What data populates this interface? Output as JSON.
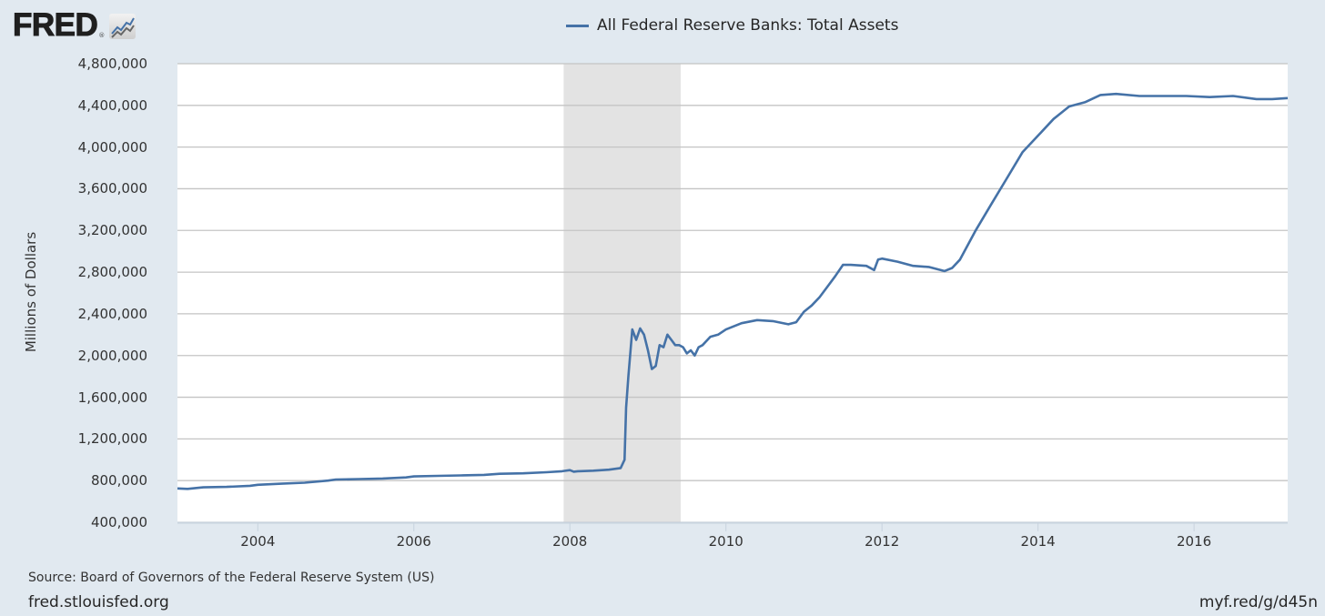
{
  "header": {
    "logo_text": "FRED",
    "logo_mark": "®",
    "logo_icon": "chart-line-icon",
    "legend_label": "All Federal Reserve Banks: Total Assets",
    "legend_color": "#4572a7"
  },
  "footer": {
    "source": "Source: Board of Governors of the Federal Reserve System (US)",
    "site": "fred.stlouisfed.org",
    "short_link": "myf.red/g/d45n"
  },
  "colors": {
    "background": "#e1e9f0",
    "plot_background": "#ffffff",
    "gridline": "#c4c4c4",
    "recession_shade": "#e3e3e3",
    "line": "#4572a7"
  },
  "chart_data": {
    "type": "line",
    "title": "All Federal Reserve Banks: Total Assets",
    "xlabel": "",
    "ylabel": "Millions of Dollars",
    "ylim": [
      400000,
      4800000
    ],
    "xlim": [
      2002.97,
      2017.2
    ],
    "grid": true,
    "legend_position": "top-center",
    "yticks": [
      "4,800,000",
      "4,400,000",
      "4,000,000",
      "3,600,000",
      "3,200,000",
      "2,800,000",
      "2,400,000",
      "2,000,000",
      "1,600,000",
      "1,200,000",
      "800,000",
      "400,000"
    ],
    "ytick_values": [
      4800000,
      4400000,
      4000000,
      3600000,
      3200000,
      2800000,
      2400000,
      2000000,
      1600000,
      1200000,
      800000,
      400000
    ],
    "xticks": [
      "2004",
      "2006",
      "2008",
      "2010",
      "2012",
      "2014",
      "2016"
    ],
    "xtick_values": [
      2004,
      2006,
      2008,
      2010,
      2012,
      2014,
      2016
    ],
    "recessions": [
      {
        "start": 2007.92,
        "end": 2009.42
      }
    ],
    "annotations": [],
    "series": [
      {
        "name": "All Federal Reserve Banks: Total Assets",
        "color": "#4572a7",
        "x": [
          2002.97,
          2003.1,
          2003.3,
          2003.6,
          2003.9,
          2004.0,
          2004.3,
          2004.6,
          2004.9,
          2005.0,
          2005.3,
          2005.6,
          2005.9,
          2006.0,
          2006.3,
          2006.6,
          2006.9,
          2007.1,
          2007.4,
          2007.7,
          2007.9,
          2008.0,
          2008.05,
          2008.1,
          2008.3,
          2008.5,
          2008.65,
          2008.7,
          2008.72,
          2008.75,
          2008.8,
          2008.85,
          2008.9,
          2008.95,
          2009.0,
          2009.05,
          2009.1,
          2009.15,
          2009.2,
          2009.25,
          2009.3,
          2009.35,
          2009.4,
          2009.45,
          2009.5,
          2009.55,
          2009.6,
          2009.65,
          2009.7,
          2009.8,
          2009.9,
          2010.0,
          2010.2,
          2010.4,
          2010.6,
          2010.8,
          2010.9,
          2011.0,
          2011.1,
          2011.2,
          2011.3,
          2011.4,
          2011.5,
          2011.6,
          2011.8,
          2011.9,
          2011.95,
          2012.0,
          2012.2,
          2012.4,
          2012.6,
          2012.8,
          2012.9,
          2013.0,
          2013.2,
          2013.4,
          2013.6,
          2013.8,
          2014.0,
          2014.2,
          2014.4,
          2014.6,
          2014.8,
          2015.0,
          2015.3,
          2015.6,
          2015.9,
          2016.2,
          2016.5,
          2016.8,
          2017.0,
          2017.2
        ],
        "values": [
          725000,
          720000,
          735000,
          740000,
          750000,
          760000,
          770000,
          780000,
          800000,
          810000,
          815000,
          820000,
          830000,
          840000,
          845000,
          850000,
          855000,
          865000,
          870000,
          880000,
          890000,
          900000,
          885000,
          890000,
          895000,
          905000,
          920000,
          1000000,
          1500000,
          1800000,
          2250000,
          2150000,
          2260000,
          2200000,
          2050000,
          1870000,
          1900000,
          2100000,
          2080000,
          2200000,
          2150000,
          2100000,
          2100000,
          2080000,
          2020000,
          2050000,
          2000000,
          2080000,
          2100000,
          2180000,
          2200000,
          2250000,
          2310000,
          2340000,
          2330000,
          2300000,
          2320000,
          2420000,
          2480000,
          2560000,
          2660000,
          2760000,
          2870000,
          2870000,
          2860000,
          2820000,
          2920000,
          2930000,
          2900000,
          2860000,
          2850000,
          2810000,
          2840000,
          2920000,
          3200000,
          3450000,
          3700000,
          3950000,
          4110000,
          4270000,
          4390000,
          4430000,
          4500000,
          4510000,
          4490000,
          4490000,
          4490000,
          4480000,
          4490000,
          4460000,
          4460000,
          4470000
        ]
      }
    ]
  }
}
